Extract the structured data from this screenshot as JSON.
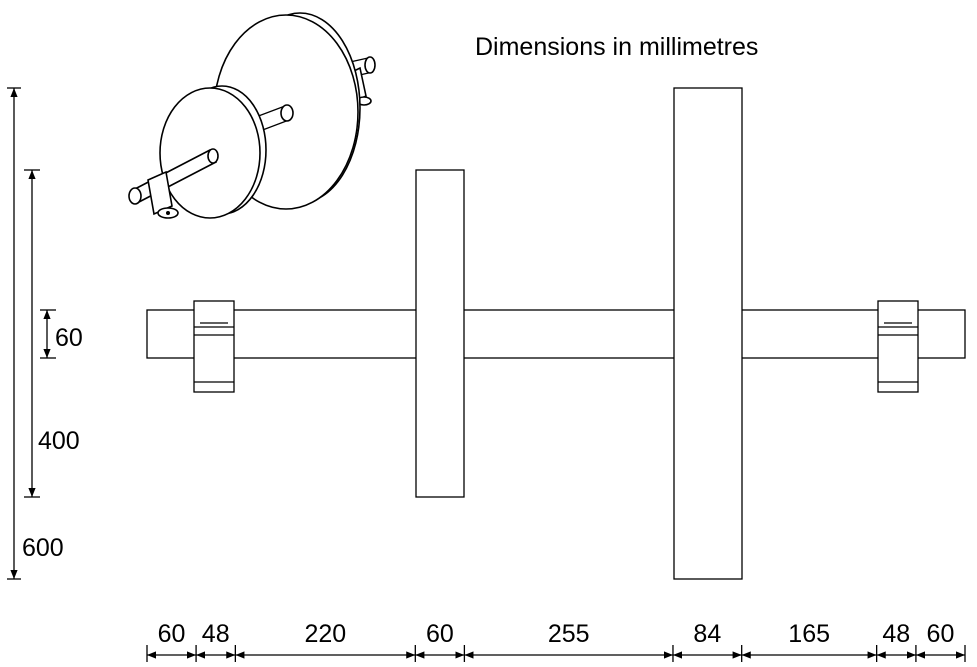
{
  "title": "Dimensions in millimetres",
  "vertical_dimensions": {
    "shaft_diameter": "60",
    "small_wheel_diameter": "400",
    "large_wheel_diameter": "600"
  },
  "horizontal_dimensions": [
    "60",
    "48",
    "220",
    "60",
    "255",
    "84",
    "165",
    "48",
    "60"
  ],
  "colors": {
    "line": "#000000",
    "background": "#ffffff"
  }
}
